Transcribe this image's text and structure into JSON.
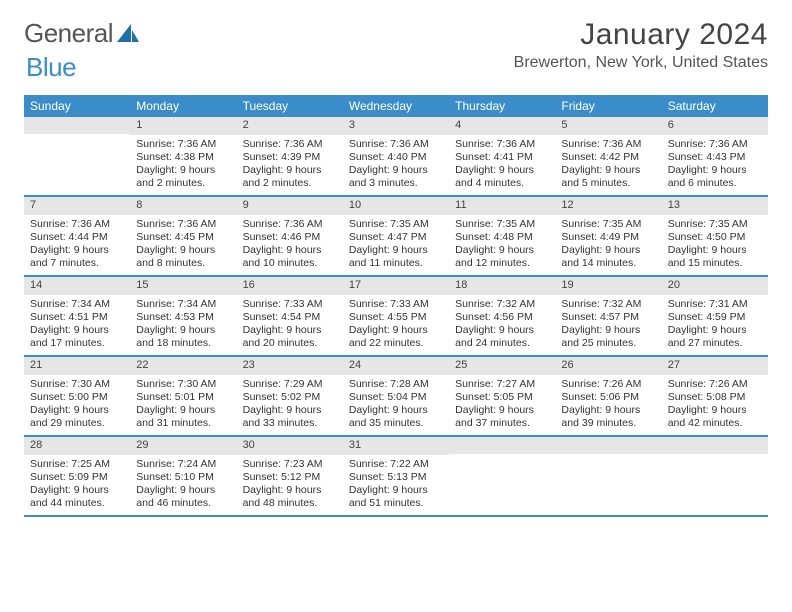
{
  "logo": {
    "text1": "General",
    "text2": "Blue"
  },
  "title": "January 2024",
  "location": "Brewerton, New York, United States",
  "colors": {
    "header_bg": "#3a8dc9",
    "header_text": "#ffffff",
    "daynum_bg": "#e6e6e6",
    "text": "#333333",
    "page_bg": "#ffffff"
  },
  "day_labels": [
    "Sunday",
    "Monday",
    "Tuesday",
    "Wednesday",
    "Thursday",
    "Friday",
    "Saturday"
  ],
  "weeks": [
    [
      {
        "n": "",
        "sunrise": "",
        "sunset": "",
        "daylight": ""
      },
      {
        "n": "1",
        "sunrise": "Sunrise: 7:36 AM",
        "sunset": "Sunset: 4:38 PM",
        "daylight": "Daylight: 9 hours and 2 minutes."
      },
      {
        "n": "2",
        "sunrise": "Sunrise: 7:36 AM",
        "sunset": "Sunset: 4:39 PM",
        "daylight": "Daylight: 9 hours and 2 minutes."
      },
      {
        "n": "3",
        "sunrise": "Sunrise: 7:36 AM",
        "sunset": "Sunset: 4:40 PM",
        "daylight": "Daylight: 9 hours and 3 minutes."
      },
      {
        "n": "4",
        "sunrise": "Sunrise: 7:36 AM",
        "sunset": "Sunset: 4:41 PM",
        "daylight": "Daylight: 9 hours and 4 minutes."
      },
      {
        "n": "5",
        "sunrise": "Sunrise: 7:36 AM",
        "sunset": "Sunset: 4:42 PM",
        "daylight": "Daylight: 9 hours and 5 minutes."
      },
      {
        "n": "6",
        "sunrise": "Sunrise: 7:36 AM",
        "sunset": "Sunset: 4:43 PM",
        "daylight": "Daylight: 9 hours and 6 minutes."
      }
    ],
    [
      {
        "n": "7",
        "sunrise": "Sunrise: 7:36 AM",
        "sunset": "Sunset: 4:44 PM",
        "daylight": "Daylight: 9 hours and 7 minutes."
      },
      {
        "n": "8",
        "sunrise": "Sunrise: 7:36 AM",
        "sunset": "Sunset: 4:45 PM",
        "daylight": "Daylight: 9 hours and 8 minutes."
      },
      {
        "n": "9",
        "sunrise": "Sunrise: 7:36 AM",
        "sunset": "Sunset: 4:46 PM",
        "daylight": "Daylight: 9 hours and 10 minutes."
      },
      {
        "n": "10",
        "sunrise": "Sunrise: 7:35 AM",
        "sunset": "Sunset: 4:47 PM",
        "daylight": "Daylight: 9 hours and 11 minutes."
      },
      {
        "n": "11",
        "sunrise": "Sunrise: 7:35 AM",
        "sunset": "Sunset: 4:48 PM",
        "daylight": "Daylight: 9 hours and 12 minutes."
      },
      {
        "n": "12",
        "sunrise": "Sunrise: 7:35 AM",
        "sunset": "Sunset: 4:49 PM",
        "daylight": "Daylight: 9 hours and 14 minutes."
      },
      {
        "n": "13",
        "sunrise": "Sunrise: 7:35 AM",
        "sunset": "Sunset: 4:50 PM",
        "daylight": "Daylight: 9 hours and 15 minutes."
      }
    ],
    [
      {
        "n": "14",
        "sunrise": "Sunrise: 7:34 AM",
        "sunset": "Sunset: 4:51 PM",
        "daylight": "Daylight: 9 hours and 17 minutes."
      },
      {
        "n": "15",
        "sunrise": "Sunrise: 7:34 AM",
        "sunset": "Sunset: 4:53 PM",
        "daylight": "Daylight: 9 hours and 18 minutes."
      },
      {
        "n": "16",
        "sunrise": "Sunrise: 7:33 AM",
        "sunset": "Sunset: 4:54 PM",
        "daylight": "Daylight: 9 hours and 20 minutes."
      },
      {
        "n": "17",
        "sunrise": "Sunrise: 7:33 AM",
        "sunset": "Sunset: 4:55 PM",
        "daylight": "Daylight: 9 hours and 22 minutes."
      },
      {
        "n": "18",
        "sunrise": "Sunrise: 7:32 AM",
        "sunset": "Sunset: 4:56 PM",
        "daylight": "Daylight: 9 hours and 24 minutes."
      },
      {
        "n": "19",
        "sunrise": "Sunrise: 7:32 AM",
        "sunset": "Sunset: 4:57 PM",
        "daylight": "Daylight: 9 hours and 25 minutes."
      },
      {
        "n": "20",
        "sunrise": "Sunrise: 7:31 AM",
        "sunset": "Sunset: 4:59 PM",
        "daylight": "Daylight: 9 hours and 27 minutes."
      }
    ],
    [
      {
        "n": "21",
        "sunrise": "Sunrise: 7:30 AM",
        "sunset": "Sunset: 5:00 PM",
        "daylight": "Daylight: 9 hours and 29 minutes."
      },
      {
        "n": "22",
        "sunrise": "Sunrise: 7:30 AM",
        "sunset": "Sunset: 5:01 PM",
        "daylight": "Daylight: 9 hours and 31 minutes."
      },
      {
        "n": "23",
        "sunrise": "Sunrise: 7:29 AM",
        "sunset": "Sunset: 5:02 PM",
        "daylight": "Daylight: 9 hours and 33 minutes."
      },
      {
        "n": "24",
        "sunrise": "Sunrise: 7:28 AM",
        "sunset": "Sunset: 5:04 PM",
        "daylight": "Daylight: 9 hours and 35 minutes."
      },
      {
        "n": "25",
        "sunrise": "Sunrise: 7:27 AM",
        "sunset": "Sunset: 5:05 PM",
        "daylight": "Daylight: 9 hours and 37 minutes."
      },
      {
        "n": "26",
        "sunrise": "Sunrise: 7:26 AM",
        "sunset": "Sunset: 5:06 PM",
        "daylight": "Daylight: 9 hours and 39 minutes."
      },
      {
        "n": "27",
        "sunrise": "Sunrise: 7:26 AM",
        "sunset": "Sunset: 5:08 PM",
        "daylight": "Daylight: 9 hours and 42 minutes."
      }
    ],
    [
      {
        "n": "28",
        "sunrise": "Sunrise: 7:25 AM",
        "sunset": "Sunset: 5:09 PM",
        "daylight": "Daylight: 9 hours and 44 minutes."
      },
      {
        "n": "29",
        "sunrise": "Sunrise: 7:24 AM",
        "sunset": "Sunset: 5:10 PM",
        "daylight": "Daylight: 9 hours and 46 minutes."
      },
      {
        "n": "30",
        "sunrise": "Sunrise: 7:23 AM",
        "sunset": "Sunset: 5:12 PM",
        "daylight": "Daylight: 9 hours and 48 minutes."
      },
      {
        "n": "31",
        "sunrise": "Sunrise: 7:22 AM",
        "sunset": "Sunset: 5:13 PM",
        "daylight": "Daylight: 9 hours and 51 minutes."
      },
      {
        "n": "",
        "sunrise": "",
        "sunset": "",
        "daylight": ""
      },
      {
        "n": "",
        "sunrise": "",
        "sunset": "",
        "daylight": ""
      },
      {
        "n": "",
        "sunrise": "",
        "sunset": "",
        "daylight": ""
      }
    ]
  ]
}
